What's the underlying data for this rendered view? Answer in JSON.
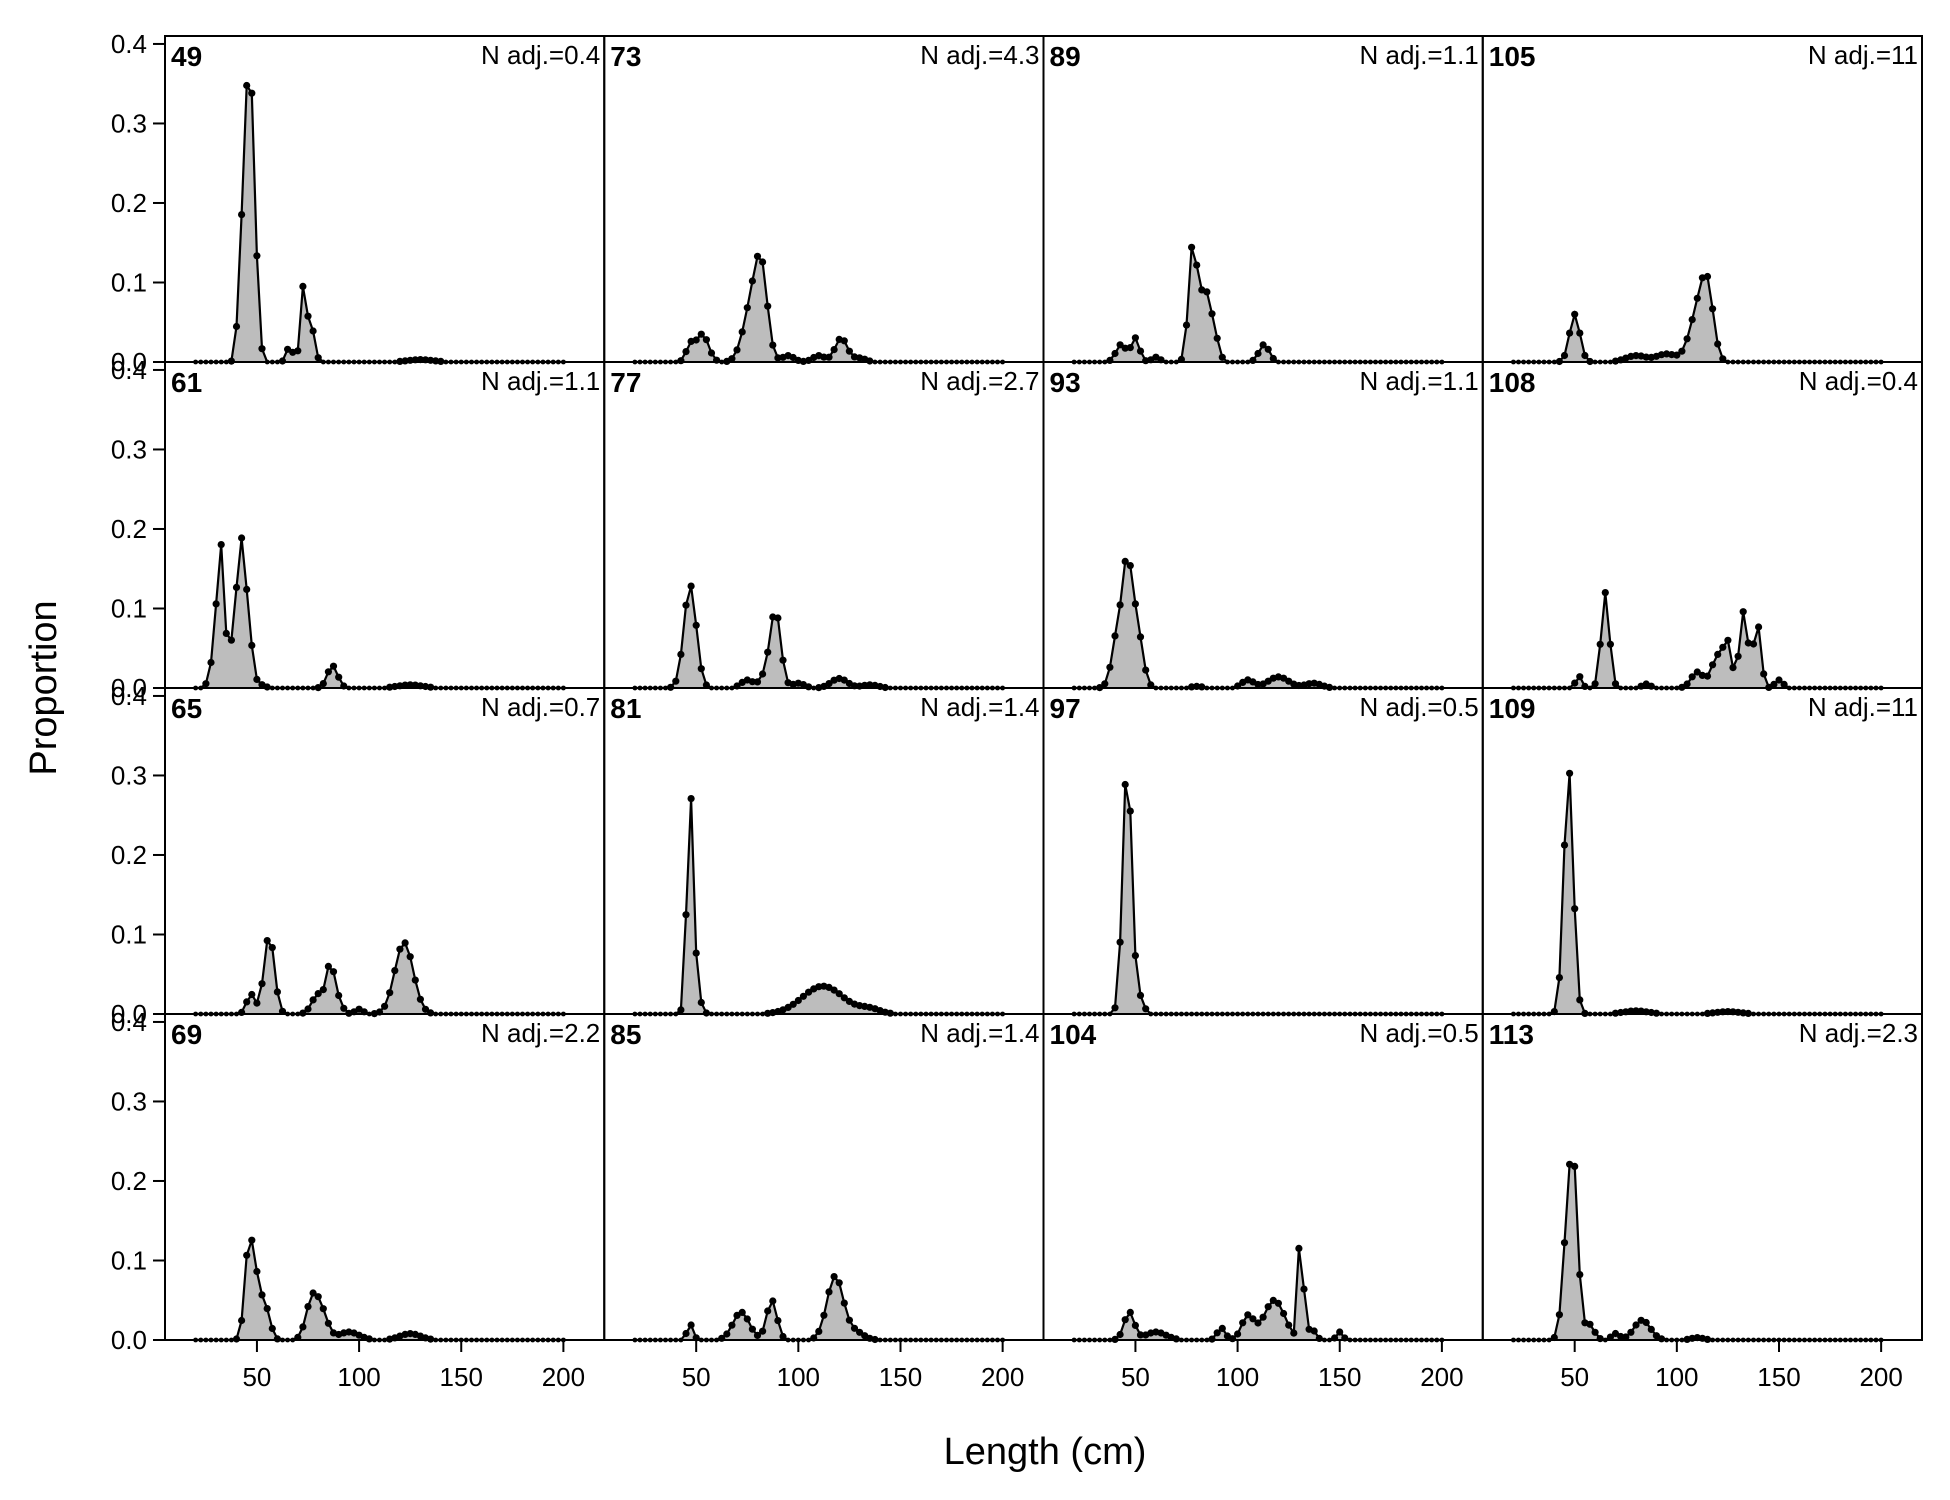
{
  "chart_data": {
    "type": "area",
    "xlabel": "Length (cm)",
    "ylabel": "Proportion",
    "xlim": [
      5,
      220
    ],
    "ylim": [
      0,
      0.41
    ],
    "xticks": [
      50,
      100,
      150,
      200
    ],
    "yticks": [
      0.0,
      0.1,
      0.2,
      0.3,
      0.4
    ],
    "ytick_labels": [
      "0.0",
      "0.1",
      "0.2",
      "0.3",
      "0.4"
    ],
    "grid": false,
    "fill_color": "#bdbdbd",
    "line_color": "#000000",
    "x_start": 20,
    "x_step": 2.5,
    "panels": [
      {
        "id": "49",
        "n_adj": "N adj.=0.4",
        "peaks": [
          [
            42,
            0.1,
            1.5
          ],
          [
            44,
            0.12,
            1.5
          ],
          [
            46,
            0.27,
            1.5
          ],
          [
            48,
            0.16,
            1.5
          ],
          [
            50,
            0.06,
            1.5
          ],
          [
            73,
            0.1,
            1.5
          ],
          [
            66,
            0.02,
            1.5
          ],
          [
            77,
            0.04,
            1.5
          ],
          [
            130,
            0.003,
            6
          ]
        ]
      },
      {
        "id": "73",
        "n_adj": "N adj.=4.3",
        "peaks": [
          [
            47,
            0.02,
            2
          ],
          [
            53,
            0.035,
            3
          ],
          [
            77,
            0.07,
            4
          ],
          [
            82,
            0.1,
            3
          ],
          [
            95,
            0.008,
            3
          ],
          [
            110,
            0.008,
            3
          ],
          [
            121,
            0.03,
            3
          ],
          [
            130,
            0.005,
            3
          ]
        ]
      },
      {
        "id": "89",
        "n_adj": "N adj.=1.1",
        "peaks": [
          [
            43,
            0.022,
            2.5
          ],
          [
            50,
            0.03,
            2
          ],
          [
            60,
            0.006,
            2
          ],
          [
            78,
            0.14,
            2
          ],
          [
            84,
            0.09,
            3
          ],
          [
            89,
            0.02,
            2
          ],
          [
            113,
            0.022,
            2.5
          ]
        ]
      },
      {
        "id": "105",
        "n_adj": "N adj.=11",
        "peaks": [
          [
            50,
            0.06,
            2.5
          ],
          [
            80,
            0.008,
            5
          ],
          [
            95,
            0.01,
            5
          ],
          [
            110,
            0.06,
            4
          ],
          [
            115,
            0.08,
            3
          ]
        ]
      },
      {
        "id": "61",
        "n_adj": "N adj.=1.1",
        "peaks": [
          [
            29,
            0.04,
            2
          ],
          [
            32,
            0.17,
            1.5
          ],
          [
            36,
            0.05,
            2
          ],
          [
            42,
            0.18,
            2.2
          ],
          [
            46,
            0.06,
            2
          ],
          [
            52,
            0.004,
            2
          ],
          [
            87,
            0.028,
            2.5
          ],
          [
            125,
            0.004,
            6
          ]
        ]
      },
      {
        "id": "77",
        "n_adj": "N adj.=2.7",
        "peaks": [
          [
            47,
            0.13,
            3
          ],
          [
            75,
            0.01,
            3
          ],
          [
            85,
            0.02,
            3
          ],
          [
            89,
            0.09,
            2.5
          ],
          [
            100,
            0.006,
            3
          ],
          [
            120,
            0.012,
            4
          ],
          [
            135,
            0.004,
            4
          ]
        ]
      },
      {
        "id": "93",
        "n_adj": "N adj.=1.1",
        "peaks": [
          [
            42,
            0.08,
            3
          ],
          [
            46,
            0.1,
            2
          ],
          [
            50,
            0.09,
            3
          ],
          [
            80,
            0.002,
            3
          ],
          [
            105,
            0.01,
            3
          ],
          [
            120,
            0.014,
            5
          ],
          [
            137,
            0.006,
            4
          ]
        ]
      },
      {
        "id": "108",
        "n_adj": "N adj.=0.4",
        "peaks": [
          [
            52,
            0.015,
            1.5
          ],
          [
            65,
            0.12,
            2
          ],
          [
            85,
            0.005,
            2
          ],
          [
            110,
            0.02,
            3
          ],
          [
            120,
            0.04,
            3
          ],
          [
            125,
            0.05,
            2
          ],
          [
            132,
            0.09,
            1.5
          ],
          [
            136,
            0.05,
            2
          ],
          [
            140,
            0.07,
            1.5
          ],
          [
            150,
            0.01,
            2
          ]
        ]
      },
      {
        "id": "65",
        "n_adj": "N adj.=0.7",
        "peaks": [
          [
            47,
            0.025,
            2
          ],
          [
            56,
            0.1,
            2.5
          ],
          [
            80,
            0.025,
            3
          ],
          [
            86,
            0.06,
            2
          ],
          [
            90,
            0.015,
            2
          ],
          [
            100,
            0.006,
            2
          ],
          [
            122,
            0.09,
            4.5
          ]
        ]
      },
      {
        "id": "81",
        "n_adj": "N adj.=1.4",
        "peaks": [
          [
            47,
            0.27,
            1.6
          ],
          [
            50,
            0.03,
            2
          ],
          [
            112,
            0.035,
            10
          ],
          [
            135,
            0.006,
            5
          ]
        ]
      },
      {
        "id": "97",
        "n_adj": "N adj.=0.5",
        "peaks": [
          [
            46,
            0.32,
            2.2
          ],
          [
            52,
            0.02,
            2
          ]
        ]
      },
      {
        "id": "109",
        "n_adj": "N adj.=11",
        "peaks": [
          [
            47,
            0.31,
            2.3
          ],
          [
            80,
            0.004,
            6
          ],
          [
            125,
            0.003,
            6
          ]
        ]
      },
      {
        "id": "69",
        "n_adj": "N adj.=2.2",
        "peaks": [
          [
            46,
            0.11,
            2
          ],
          [
            50,
            0.07,
            2.5
          ],
          [
            55,
            0.03,
            2
          ],
          [
            77,
            0.05,
            3
          ],
          [
            82,
            0.03,
            3
          ],
          [
            95,
            0.01,
            5
          ],
          [
            125,
            0.008,
            5
          ]
        ]
      },
      {
        "id": "85",
        "n_adj": "N adj.=1.4",
        "peaks": [
          [
            47,
            0.02,
            1.5
          ],
          [
            72,
            0.035,
            4
          ],
          [
            87,
            0.05,
            2.5
          ],
          [
            118,
            0.08,
            4
          ],
          [
            128,
            0.01,
            4
          ]
        ]
      },
      {
        "id": "104",
        "n_adj": "N adj.=0.5",
        "peaks": [
          [
            47,
            0.035,
            2.5
          ],
          [
            60,
            0.01,
            5
          ],
          [
            92,
            0.015,
            2
          ],
          [
            105,
            0.03,
            3
          ],
          [
            118,
            0.05,
            5
          ],
          [
            131,
            0.185,
            1
          ],
          [
            136,
            0.015,
            2
          ],
          [
            150,
            0.01,
            1.5
          ]
        ]
      },
      {
        "id": "113",
        "n_adj": "N adj.=2.3",
        "peaks": [
          [
            47,
            0.16,
            2.5
          ],
          [
            50,
            0.14,
            2
          ],
          [
            57,
            0.02,
            2.5
          ],
          [
            70,
            0.008,
            2
          ],
          [
            83,
            0.025,
            4
          ],
          [
            110,
            0.003,
            3
          ]
        ]
      }
    ]
  }
}
